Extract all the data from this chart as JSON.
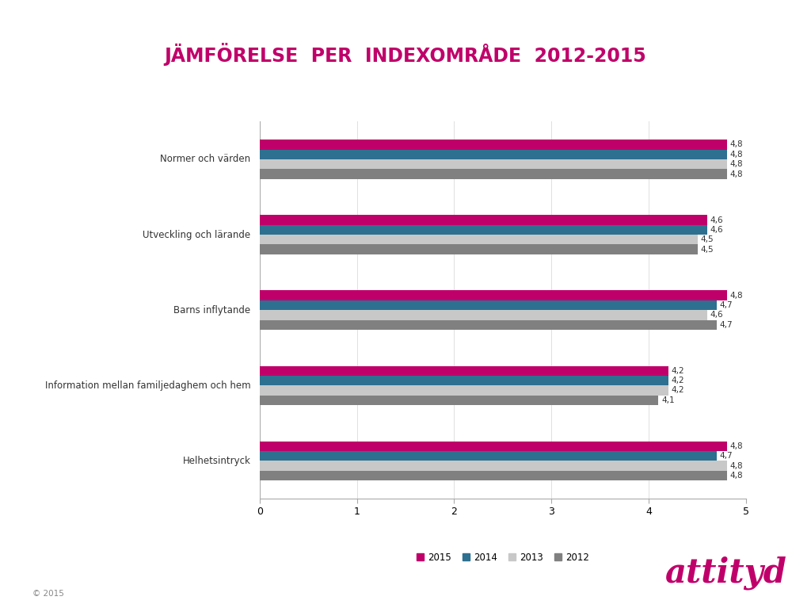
{
  "title": "JÄMFÖRELSE  PER  INDEXOMRÅDE  2012-2015",
  "title_color": "#c0006a",
  "categories": [
    "Normer och värden",
    "Utveckling och lärande",
    "Barns inflytande",
    "Information mellan familjedaghem och hem",
    "Helhetsintryck"
  ],
  "years": [
    "2015",
    "2014",
    "2013",
    "2012"
  ],
  "colors": [
    "#c0006a",
    "#2e7090",
    "#c8c8c8",
    "#808080"
  ],
  "data": {
    "2015": [
      4.8,
      4.6,
      4.8,
      4.2,
      4.8
    ],
    "2014": [
      4.8,
      4.6,
      4.7,
      4.2,
      4.7
    ],
    "2013": [
      4.8,
      4.5,
      4.6,
      4.2,
      4.8
    ],
    "2012": [
      4.8,
      4.5,
      4.7,
      4.1,
      4.8
    ]
  },
  "xlim": [
    0,
    5
  ],
  "xticks": [
    0,
    1,
    2,
    3,
    4,
    5
  ],
  "background_color": "#ffffff",
  "footer_text": "© 2015",
  "brand_text": "attityd",
  "brand_color": "#c0006a"
}
